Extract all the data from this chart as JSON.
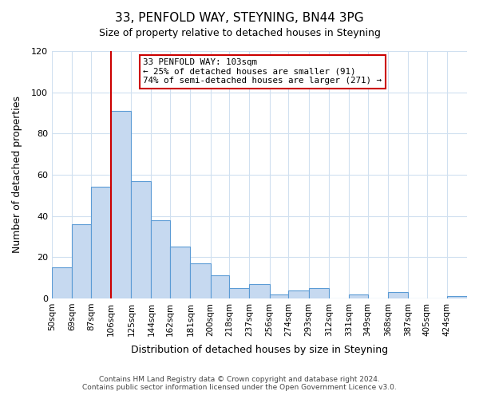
{
  "title": "33, PENFOLD WAY, STEYNING, BN44 3PG",
  "subtitle": "Size of property relative to detached houses in Steyning",
  "xlabel": "Distribution of detached houses by size in Steyning",
  "ylabel": "Number of detached properties",
  "bin_labels": [
    "50sqm",
    "69sqm",
    "87sqm",
    "106sqm",
    "125sqm",
    "144sqm",
    "162sqm",
    "181sqm",
    "200sqm",
    "218sqm",
    "237sqm",
    "256sqm",
    "274sqm",
    "293sqm",
    "312sqm",
    "331sqm",
    "349sqm",
    "368sqm",
    "387sqm",
    "405sqm",
    "424sqm"
  ],
  "bin_edges_numeric": [
    50,
    69,
    87,
    106,
    125,
    144,
    162,
    181,
    200,
    218,
    237,
    256,
    274,
    293,
    312,
    331,
    349,
    368,
    387,
    405,
    424
  ],
  "bar_heights": [
    15,
    36,
    54,
    91,
    57,
    38,
    25,
    17,
    11,
    5,
    7,
    2,
    4,
    5,
    0,
    2,
    0,
    3,
    0,
    0,
    1
  ],
  "bar_color": "#c6d9f0",
  "bar_edge_color": "#5b9bd5",
  "property_line_x": 106,
  "annotation_line1": "33 PENFOLD WAY: 103sqm",
  "annotation_line2": "← 25% of detached houses are smaller (91)",
  "annotation_line3": "74% of semi-detached houses are larger (271) →",
  "annotation_box_color": "#cc0000",
  "vline_color": "#cc0000",
  "ylim": [
    0,
    120
  ],
  "yticks": [
    0,
    20,
    40,
    60,
    80,
    100,
    120
  ],
  "footnote1": "Contains HM Land Registry data © Crown copyright and database right 2024.",
  "footnote2": "Contains public sector information licensed under the Open Government Licence v3.0.",
  "background_color": "#ffffff",
  "grid_color": "#d0e0f0"
}
